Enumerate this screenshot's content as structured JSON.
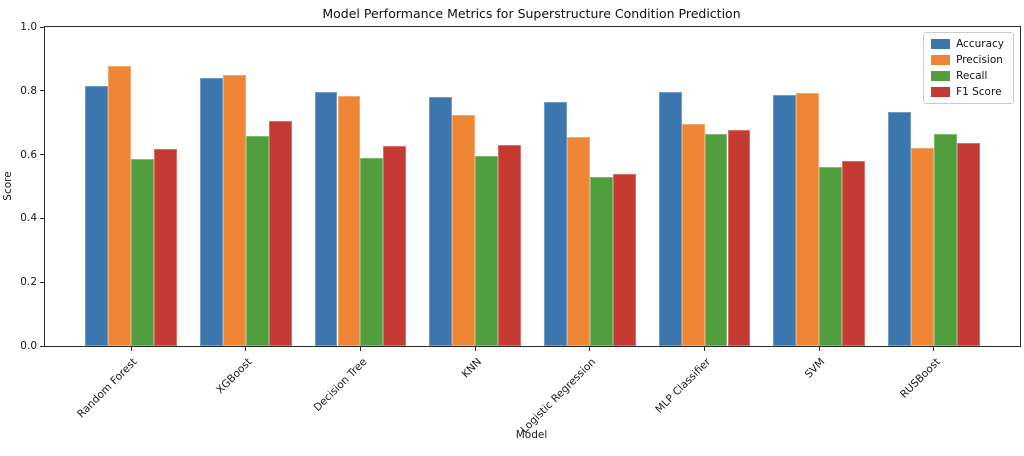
{
  "chart_data": {
    "type": "bar",
    "title": "Model Performance Metrics for Superstructure Condition Prediction",
    "xlabel": "Model",
    "ylabel": "Score",
    "categories": [
      "Random Forest",
      "XGBoost",
      "Decision Tree",
      "KNN",
      "Logistic Regression",
      "MLP Classifier",
      "SVM",
      "RUSBoost"
    ],
    "series": [
      {
        "name": "Accuracy",
        "color": "#3B76AF",
        "values": [
          0.815,
          0.84,
          0.795,
          0.78,
          0.765,
          0.795,
          0.788,
          0.735
        ]
      },
      {
        "name": "Precision",
        "color": "#EF8636",
        "values": [
          0.878,
          0.85,
          0.783,
          0.723,
          0.655,
          0.697,
          0.793,
          0.62
        ]
      },
      {
        "name": "Recall",
        "color": "#519E3E",
        "values": [
          0.585,
          0.658,
          0.59,
          0.595,
          0.53,
          0.665,
          0.56,
          0.665
        ]
      },
      {
        "name": "F1 Score",
        "color": "#C53A32",
        "values": [
          0.618,
          0.705,
          0.628,
          0.63,
          0.538,
          0.678,
          0.58,
          0.635
        ]
      }
    ],
    "ylim": [
      0.0,
      1.0
    ],
    "yticks": [
      0.0,
      0.2,
      0.4,
      0.6,
      0.8,
      1.0
    ],
    "grid": false,
    "legend_position": "upper right",
    "bar_width_units": 0.2,
    "x_span_units": 8.5
  }
}
